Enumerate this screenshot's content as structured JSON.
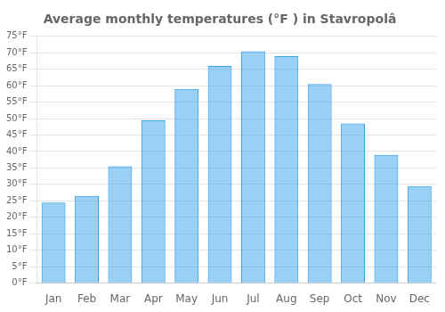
{
  "chart_data": {
    "type": "bar",
    "title": "Average monthly temperatures (°F ) in Stavropolâ",
    "categories": [
      "Jan",
      "Feb",
      "Mar",
      "Apr",
      "May",
      "Jun",
      "Jul",
      "Aug",
      "Sep",
      "Oct",
      "Nov",
      "Dec"
    ],
    "values": [
      24.5,
      26.5,
      35.5,
      49.5,
      59.0,
      66.0,
      70.5,
      69.0,
      60.5,
      48.5,
      39.0,
      29.5
    ],
    "ylim": [
      0,
      75
    ],
    "yticks": [
      {
        "value": 0,
        "label": "0°F"
      },
      {
        "value": 5,
        "label": "5°F"
      },
      {
        "value": 10,
        "label": "10°F"
      },
      {
        "value": 15,
        "label": "15°F"
      },
      {
        "value": 20,
        "label": "20°F"
      },
      {
        "value": 25,
        "label": "25°F"
      },
      {
        "value": 30,
        "label": "30°F"
      },
      {
        "value": 35,
        "label": "35°F"
      },
      {
        "value": 40,
        "label": "40°F"
      },
      {
        "value": 45,
        "label": "45°F"
      },
      {
        "value": 50,
        "label": "50°F"
      },
      {
        "value": 55,
        "label": "55°F"
      },
      {
        "value": 60,
        "label": "60°F"
      },
      {
        "value": 65,
        "label": "65°F"
      },
      {
        "value": 70,
        "label": "70°F"
      },
      {
        "value": 75,
        "label": "75°F"
      }
    ],
    "grid": true
  }
}
